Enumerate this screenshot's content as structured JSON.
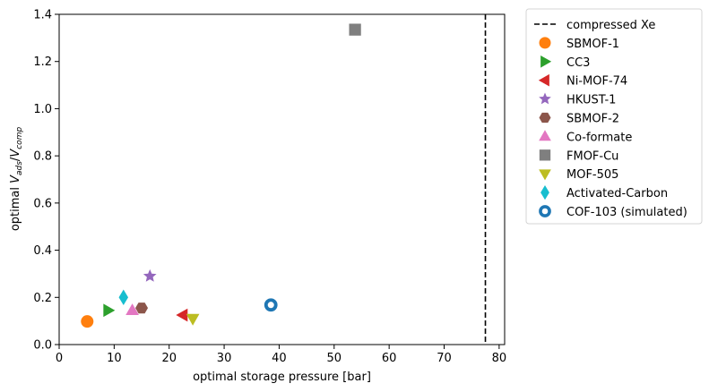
{
  "chart_data": {
    "type": "scatter",
    "xlabel": "optimal storage pressure [bar]",
    "ylabel": {
      "prefix": "optimal ",
      "num": "V",
      "num_sub": "ads",
      "slash": "/",
      "den": "V",
      "den_sub": "comp"
    },
    "xlim": [
      0,
      81
    ],
    "ylim": [
      0,
      1.4
    ],
    "xticks": [
      0,
      10,
      20,
      30,
      40,
      50,
      60,
      70,
      80
    ],
    "yticks": [
      0.0,
      0.2,
      0.4,
      0.6,
      0.8,
      1.0,
      1.2,
      1.4
    ],
    "xtick_labels": [
      "0",
      "10",
      "20",
      "30",
      "40",
      "50",
      "60",
      "70",
      "80"
    ],
    "ytick_labels": [
      "0.0",
      "0.2",
      "0.4",
      "0.6",
      "0.8",
      "1.0",
      "1.2",
      "1.4"
    ],
    "grid": false,
    "legend_position": "outside-right-top",
    "reference_line": {
      "name": "compressed Xe",
      "x": 77.5,
      "style": "dashed",
      "color": "#000000"
    },
    "series": [
      {
        "name": "SBMOF-1",
        "x": 5.1,
        "y": 0.098,
        "marker": "circle",
        "color": "#ff7f0e"
      },
      {
        "name": "CC3",
        "x": 8.9,
        "y": 0.145,
        "marker": "triangle-right",
        "color": "#2ca02c"
      },
      {
        "name": "Ni-MOF-74",
        "x": 22.5,
        "y": 0.125,
        "marker": "triangle-left",
        "color": "#d62728"
      },
      {
        "name": "HKUST-1",
        "x": 16.5,
        "y": 0.29,
        "marker": "star",
        "color": "#9467bd"
      },
      {
        "name": "SBMOF-2",
        "x": 15.0,
        "y": 0.155,
        "marker": "hexagon",
        "color": "#8c564b"
      },
      {
        "name": "Co-formate",
        "x": 13.3,
        "y": 0.145,
        "marker": "triangle-up",
        "color": "#e377c2"
      },
      {
        "name": "FMOF-Cu",
        "x": 53.8,
        "y": 1.335,
        "marker": "square",
        "color": "#7f7f7f"
      },
      {
        "name": "MOF-505",
        "x": 24.3,
        "y": 0.11,
        "marker": "triangle-down",
        "color": "#bcbd22"
      },
      {
        "name": "Activated-Carbon",
        "x": 11.7,
        "y": 0.2,
        "marker": "diamond",
        "color": "#17becf"
      },
      {
        "name": "COF-103 (simulated)",
        "x": 38.5,
        "y": 0.168,
        "marker": "ring",
        "color": "#1f77b4"
      }
    ]
  }
}
